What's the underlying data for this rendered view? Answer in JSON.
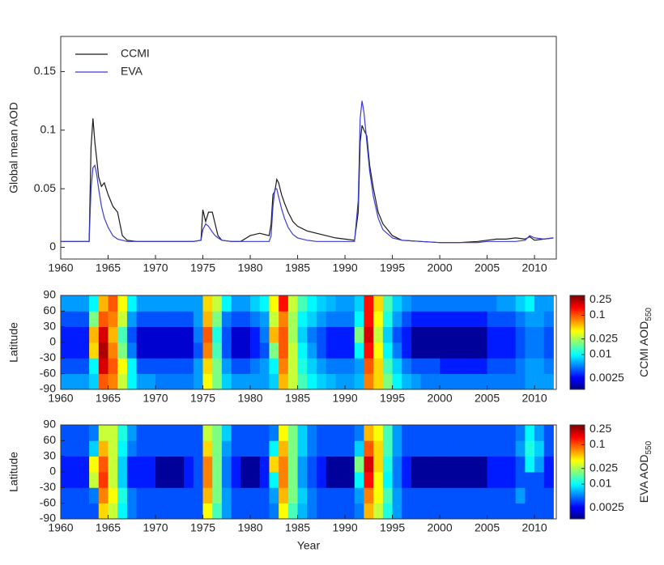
{
  "chart_data": [
    {
      "type": "line",
      "ylabel": "Global mean AOD",
      "x": [
        1960,
        1963,
        1963.2,
        1963.4,
        1963.6,
        1963.8,
        1964,
        1964.3,
        1964.6,
        1965,
        1965.5,
        1966,
        1966.5,
        1967,
        1968,
        1970,
        1972,
        1974,
        1974.8,
        1975,
        1975.3,
        1975.6,
        1976,
        1976.3,
        1976.6,
        1977,
        1978,
        1979,
        1980,
        1981,
        1982,
        1982.2,
        1982.4,
        1982.6,
        1982.8,
        1983,
        1983.3,
        1983.6,
        1984,
        1984.5,
        1985,
        1986,
        1987,
        1988,
        1989,
        1990,
        1991,
        1991.4,
        1991.6,
        1991.8,
        1992,
        1992.3,
        1992.6,
        1993,
        1993.5,
        1994,
        1995,
        1996,
        1998,
        2000,
        2002,
        2004,
        2005,
        2006,
        2007,
        2008,
        2009,
        2009.5,
        2010,
        2011,
        2012
      ],
      "series": [
        {
          "name": "CCMI",
          "color": "#1a1a1a",
          "values": [
            0.005,
            0.005,
            0.085,
            0.11,
            0.09,
            0.075,
            0.06,
            0.052,
            0.055,
            0.045,
            0.035,
            0.03,
            0.01,
            0.006,
            0.005,
            0.005,
            0.005,
            0.005,
            0.006,
            0.032,
            0.022,
            0.03,
            0.03,
            0.02,
            0.01,
            0.006,
            0.005,
            0.005,
            0.01,
            0.012,
            0.01,
            0.02,
            0.045,
            0.048,
            0.058,
            0.055,
            0.045,
            0.038,
            0.03,
            0.022,
            0.018,
            0.014,
            0.012,
            0.01,
            0.008,
            0.007,
            0.006,
            0.03,
            0.09,
            0.104,
            0.1,
            0.095,
            0.07,
            0.05,
            0.03,
            0.02,
            0.01,
            0.006,
            0.005,
            0.004,
            0.004,
            0.005,
            0.006,
            0.007,
            0.007,
            0.008,
            0.007,
            0.009,
            0.006,
            0.007,
            0.008
          ]
        },
        {
          "name": "EVA",
          "color": "#3a3ad6",
          "values": [
            0.005,
            0.005,
            0.05,
            0.068,
            0.07,
            0.062,
            0.05,
            0.035,
            0.025,
            0.017,
            0.01,
            0.007,
            0.006,
            0.005,
            0.005,
            0.005,
            0.005,
            0.005,
            0.006,
            0.015,
            0.02,
            0.018,
            0.013,
            0.01,
            0.008,
            0.006,
            0.005,
            0.005,
            0.005,
            0.005,
            0.005,
            0.01,
            0.035,
            0.05,
            0.05,
            0.043,
            0.033,
            0.025,
            0.017,
            0.011,
            0.008,
            0.006,
            0.005,
            0.005,
            0.005,
            0.005,
            0.005,
            0.04,
            0.11,
            0.125,
            0.115,
            0.09,
            0.065,
            0.043,
            0.025,
            0.015,
            0.008,
            0.006,
            0.005,
            0.004,
            0.004,
            0.004,
            0.005,
            0.005,
            0.005,
            0.005,
            0.006,
            0.01,
            0.008,
            0.007,
            0.008
          ]
        }
      ],
      "xlim": [
        1960,
        2012.3
      ],
      "ylim": [
        -0.01,
        0.18
      ],
      "xticks": [
        1960,
        1965,
        1970,
        1975,
        1980,
        1985,
        1990,
        1995,
        2000,
        2005,
        2010
      ],
      "yticks": [
        0,
        0.05,
        0.1,
        0.15
      ],
      "legend": "upper left"
    },
    {
      "type": "heatmap",
      "ylabel": "Latitude",
      "colorbar_label": "CCMI AOD",
      "colorbar_label_subscript": "550",
      "colormap": "jet",
      "zscale": "log",
      "zlim": [
        0.0013,
        0.32
      ],
      "colorbar_ticks": [
        0.0025,
        0.01,
        0.025,
        0.1,
        0.25
      ],
      "xbins": [
        1960,
        1961,
        1962,
        1963,
        1964,
        1965,
        1966,
        1967,
        1968,
        1969,
        1970,
        1971,
        1972,
        1973,
        1974,
        1975,
        1976,
        1977,
        1978,
        1979,
        1980,
        1981,
        1982,
        1983,
        1984,
        1985,
        1986,
        1987,
        1988,
        1989,
        1990,
        1991,
        1992,
        1993,
        1994,
        1995,
        1996,
        1997,
        1998,
        1999,
        2000,
        2001,
        2002,
        2003,
        2004,
        2005,
        2006,
        2007,
        2008,
        2009,
        2010,
        2011,
        2012
      ],
      "ybins": [
        -90,
        -60,
        -30,
        0,
        30,
        60,
        90
      ],
      "z": [
        [
          0.006,
          0.006,
          0.006,
          0.008,
          0.1,
          0.08,
          0.03,
          0.01,
          0.006,
          0.006,
          0.005,
          0.005,
          0.005,
          0.005,
          0.006,
          0.04,
          0.02,
          0.008,
          0.006,
          0.006,
          0.006,
          0.006,
          0.008,
          0.06,
          0.03,
          0.015,
          0.01,
          0.008,
          0.007,
          0.006,
          0.006,
          0.007,
          0.08,
          0.05,
          0.02,
          0.01,
          0.007,
          0.006,
          0.005,
          0.005,
          0.005,
          0.005,
          0.005,
          0.005,
          0.005,
          0.005,
          0.005,
          0.005,
          0.005,
          0.006,
          0.006,
          0.006
        ],
        [
          0.004,
          0.004,
          0.004,
          0.01,
          0.2,
          0.1,
          0.04,
          0.01,
          0.004,
          0.004,
          0.004,
          0.004,
          0.004,
          0.004,
          0.006,
          0.05,
          0.02,
          0.006,
          0.004,
          0.004,
          0.005,
          0.006,
          0.01,
          0.08,
          0.03,
          0.012,
          0.008,
          0.006,
          0.005,
          0.005,
          0.005,
          0.006,
          0.1,
          0.05,
          0.015,
          0.008,
          0.005,
          0.004,
          0.004,
          0.004,
          0.003,
          0.003,
          0.003,
          0.003,
          0.003,
          0.004,
          0.004,
          0.004,
          0.005,
          0.006,
          0.006,
          0.005
        ],
        [
          0.003,
          0.003,
          0.003,
          0.05,
          0.25,
          0.08,
          0.02,
          0.005,
          0.002,
          0.002,
          0.002,
          0.002,
          0.002,
          0.002,
          0.004,
          0.08,
          0.015,
          0.004,
          0.002,
          0.002,
          0.003,
          0.004,
          0.02,
          0.1,
          0.03,
          0.01,
          0.006,
          0.004,
          0.003,
          0.003,
          0.003,
          0.01,
          0.15,
          0.04,
          0.01,
          0.005,
          0.003,
          0.0015,
          0.0015,
          0.0015,
          0.0015,
          0.0015,
          0.0015,
          0.0015,
          0.0015,
          0.003,
          0.003,
          0.003,
          0.004,
          0.005,
          0.005,
          0.004
        ],
        [
          0.003,
          0.003,
          0.003,
          0.06,
          0.2,
          0.06,
          0.015,
          0.004,
          0.002,
          0.002,
          0.002,
          0.002,
          0.002,
          0.002,
          0.005,
          0.1,
          0.012,
          0.004,
          0.002,
          0.002,
          0.003,
          0.005,
          0.06,
          0.1,
          0.025,
          0.008,
          0.005,
          0.004,
          0.003,
          0.003,
          0.003,
          0.02,
          0.2,
          0.03,
          0.008,
          0.004,
          0.003,
          0.0015,
          0.0015,
          0.0015,
          0.0015,
          0.0015,
          0.0015,
          0.0015,
          0.0015,
          0.003,
          0.003,
          0.003,
          0.004,
          0.005,
          0.005,
          0.004
        ],
        [
          0.004,
          0.004,
          0.004,
          0.02,
          0.1,
          0.08,
          0.03,
          0.006,
          0.004,
          0.004,
          0.004,
          0.004,
          0.004,
          0.004,
          0.006,
          0.06,
          0.02,
          0.005,
          0.004,
          0.004,
          0.005,
          0.006,
          0.03,
          0.08,
          0.025,
          0.01,
          0.008,
          0.006,
          0.005,
          0.005,
          0.005,
          0.01,
          0.15,
          0.04,
          0.012,
          0.006,
          0.004,
          0.003,
          0.003,
          0.003,
          0.003,
          0.003,
          0.003,
          0.003,
          0.003,
          0.004,
          0.004,
          0.004,
          0.005,
          0.006,
          0.006,
          0.005
        ],
        [
          0.006,
          0.006,
          0.006,
          0.01,
          0.06,
          0.1,
          0.04,
          0.01,
          0.006,
          0.006,
          0.006,
          0.006,
          0.006,
          0.006,
          0.006,
          0.05,
          0.03,
          0.01,
          0.006,
          0.006,
          0.008,
          0.01,
          0.04,
          0.15,
          0.03,
          0.015,
          0.01,
          0.008,
          0.007,
          0.006,
          0.006,
          0.008,
          0.15,
          0.05,
          0.015,
          0.008,
          0.006,
          0.005,
          0.005,
          0.005,
          0.005,
          0.005,
          0.005,
          0.005,
          0.005,
          0.005,
          0.006,
          0.006,
          0.008,
          0.01,
          0.006,
          0.006
        ]
      ],
      "xlim": [
        1960,
        2012.3
      ],
      "ylim": [
        -90,
        90
      ],
      "xticks": [
        1960,
        1965,
        1970,
        1975,
        1980,
        1985,
        1990,
        1995,
        2000,
        2005,
        2010
      ],
      "yticks": [
        -90,
        -60,
        -30,
        0,
        30,
        60,
        90
      ]
    },
    {
      "type": "heatmap",
      "ylabel": "Latitude",
      "xlabel": "Year",
      "colorbar_label": "EVA AOD",
      "colorbar_label_subscript": "550",
      "colormap": "jet",
      "zscale": "log",
      "zlim": [
        0.0013,
        0.32
      ],
      "colorbar_ticks": [
        0.0025,
        0.01,
        0.025,
        0.1,
        0.25
      ],
      "xbins": [
        1960,
        1961,
        1962,
        1963,
        1964,
        1965,
        1966,
        1967,
        1968,
        1969,
        1970,
        1971,
        1972,
        1973,
        1974,
        1975,
        1976,
        1977,
        1978,
        1979,
        1980,
        1981,
        1982,
        1983,
        1984,
        1985,
        1986,
        1987,
        1988,
        1989,
        1990,
        1991,
        1992,
        1993,
        1994,
        1995,
        1996,
        1997,
        1998,
        1999,
        2000,
        2001,
        2002,
        2003,
        2004,
        2005,
        2006,
        2007,
        2008,
        2009,
        2010,
        2011,
        2012
      ],
      "ybins": [
        -90,
        -60,
        -30,
        0,
        30,
        60,
        90
      ],
      "z": [
        [
          0.004,
          0.004,
          0.004,
          0.004,
          0.05,
          0.03,
          0.01,
          0.005,
          0.004,
          0.004,
          0.004,
          0.004,
          0.004,
          0.004,
          0.004,
          0.04,
          0.015,
          0.006,
          0.004,
          0.004,
          0.004,
          0.004,
          0.005,
          0.04,
          0.015,
          0.007,
          0.005,
          0.004,
          0.004,
          0.004,
          0.004,
          0.005,
          0.06,
          0.03,
          0.012,
          0.006,
          0.004,
          0.004,
          0.004,
          0.004,
          0.004,
          0.004,
          0.004,
          0.004,
          0.004,
          0.004,
          0.004,
          0.004,
          0.004,
          0.004,
          0.004,
          0.004
        ],
        [
          0.004,
          0.004,
          0.004,
          0.005,
          0.08,
          0.04,
          0.012,
          0.005,
          0.004,
          0.004,
          0.004,
          0.004,
          0.004,
          0.004,
          0.004,
          0.06,
          0.02,
          0.006,
          0.004,
          0.004,
          0.004,
          0.004,
          0.006,
          0.06,
          0.02,
          0.008,
          0.005,
          0.004,
          0.004,
          0.004,
          0.004,
          0.006,
          0.08,
          0.04,
          0.015,
          0.006,
          0.004,
          0.004,
          0.004,
          0.004,
          0.004,
          0.004,
          0.004,
          0.004,
          0.004,
          0.004,
          0.004,
          0.004,
          0.006,
          0.004,
          0.004,
          0.004
        ],
        [
          0.003,
          0.003,
          0.003,
          0.03,
          0.12,
          0.03,
          0.008,
          0.003,
          0.003,
          0.003,
          0.0015,
          0.0015,
          0.0015,
          0.003,
          0.004,
          0.08,
          0.02,
          0.005,
          0.003,
          0.0015,
          0.0015,
          0.003,
          0.01,
          0.08,
          0.02,
          0.006,
          0.004,
          0.003,
          0.0015,
          0.0015,
          0.0015,
          0.01,
          0.15,
          0.04,
          0.01,
          0.005,
          0.003,
          0.0015,
          0.0015,
          0.0015,
          0.0015,
          0.0015,
          0.0015,
          0.0015,
          0.0015,
          0.003,
          0.003,
          0.003,
          0.004,
          0.004,
          0.004,
          0.003
        ],
        [
          0.003,
          0.003,
          0.003,
          0.04,
          0.1,
          0.03,
          0.008,
          0.003,
          0.003,
          0.003,
          0.0015,
          0.0015,
          0.0015,
          0.003,
          0.004,
          0.08,
          0.02,
          0.005,
          0.003,
          0.0015,
          0.0015,
          0.003,
          0.05,
          0.08,
          0.02,
          0.006,
          0.004,
          0.003,
          0.0015,
          0.0015,
          0.0015,
          0.02,
          0.2,
          0.05,
          0.012,
          0.005,
          0.003,
          0.0015,
          0.0015,
          0.0015,
          0.0015,
          0.0015,
          0.0015,
          0.0015,
          0.0015,
          0.003,
          0.003,
          0.003,
          0.004,
          0.01,
          0.006,
          0.003
        ],
        [
          0.004,
          0.004,
          0.004,
          0.008,
          0.06,
          0.03,
          0.01,
          0.005,
          0.004,
          0.004,
          0.004,
          0.004,
          0.004,
          0.004,
          0.004,
          0.05,
          0.02,
          0.006,
          0.004,
          0.004,
          0.004,
          0.004,
          0.01,
          0.06,
          0.02,
          0.008,
          0.005,
          0.004,
          0.004,
          0.004,
          0.004,
          0.008,
          0.1,
          0.05,
          0.015,
          0.006,
          0.004,
          0.004,
          0.004,
          0.004,
          0.004,
          0.004,
          0.004,
          0.004,
          0.004,
          0.004,
          0.004,
          0.004,
          0.006,
          0.012,
          0.008,
          0.004
        ],
        [
          0.004,
          0.004,
          0.004,
          0.005,
          0.03,
          0.03,
          0.012,
          0.006,
          0.004,
          0.004,
          0.004,
          0.004,
          0.004,
          0.004,
          0.004,
          0.03,
          0.02,
          0.008,
          0.004,
          0.004,
          0.004,
          0.004,
          0.005,
          0.04,
          0.02,
          0.008,
          0.005,
          0.004,
          0.004,
          0.004,
          0.004,
          0.005,
          0.06,
          0.04,
          0.015,
          0.006,
          0.004,
          0.004,
          0.004,
          0.004,
          0.004,
          0.004,
          0.004,
          0.004,
          0.004,
          0.004,
          0.004,
          0.004,
          0.005,
          0.01,
          0.006,
          0.004
        ]
      ],
      "xlim": [
        1960,
        2012.3
      ],
      "ylim": [
        -90,
        90
      ],
      "xticks": [
        1960,
        1965,
        1970,
        1975,
        1980,
        1985,
        1990,
        1995,
        2000,
        2005,
        2010
      ],
      "yticks": [
        -90,
        -60,
        -30,
        0,
        30,
        60,
        90
      ]
    }
  ]
}
